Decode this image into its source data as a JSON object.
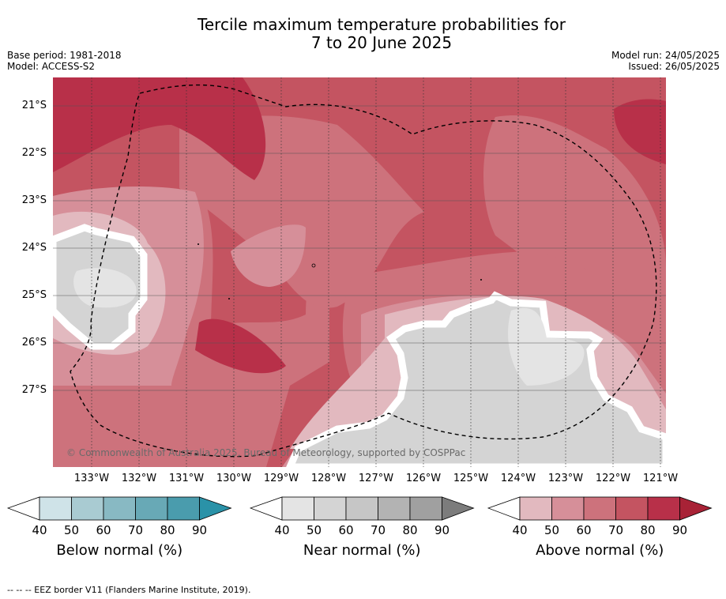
{
  "title_line1": "Tercile maximum temperature probabilities for",
  "title_line2": "7 to 20 June 2025",
  "base_period": "Base period: 1981-2018",
  "model": "Model: ACCESS-S2",
  "model_run": "Model run: 24/05/2025",
  "issued": "Issued: 26/05/2025",
  "credit": "© Commonwealth of Australia 2025, Bureau of Meteorology, supported by COSPPac",
  "footnote": "-- -- -- EEZ border V11 (Flanders Marine Institute, 2019).",
  "lat_labels": [
    "21°S",
    "22°S",
    "23°S",
    "24°S",
    "25°S",
    "26°S",
    "27°S"
  ],
  "lon_labels": [
    "133°W",
    "132°W",
    "131°W",
    "130°W",
    "129°W",
    "128°W",
    "127°W",
    "126°W",
    "125°W",
    "124°W",
    "123°W",
    "122°W",
    "121°W"
  ],
  "colorbars": [
    {
      "title": "Below normal (%)",
      "ticks": [
        "40",
        "50",
        "60",
        "70",
        "80",
        "90"
      ],
      "colors": [
        "#cfe3e8",
        "#a9cbd2",
        "#88b9c3",
        "#68a9b6",
        "#4a9cad",
        "#2a92a8"
      ]
    },
    {
      "title": "Near normal (%)",
      "ticks": [
        "40",
        "50",
        "60",
        "70",
        "80",
        "90"
      ],
      "colors": [
        "#e4e4e4",
        "#d4d4d4",
        "#c6c6c6",
        "#b3b3b3",
        "#a0a0a0",
        "#7c7c7c"
      ]
    },
    {
      "title": "Above normal (%)",
      "ticks": [
        "40",
        "50",
        "60",
        "70",
        "80",
        "90"
      ],
      "colors": [
        "#e2b9bf",
        "#d68f99",
        "#cd727c",
        "#c45461",
        "#b83049",
        "#a82236"
      ]
    }
  ],
  "colors": {
    "above_70": "#c45461",
    "above_60": "#cd727c",
    "above_50": "#d68f99",
    "above_80": "#b83049",
    "near_40": "#e4e4e4",
    "near_50": "#d4d4d4"
  }
}
